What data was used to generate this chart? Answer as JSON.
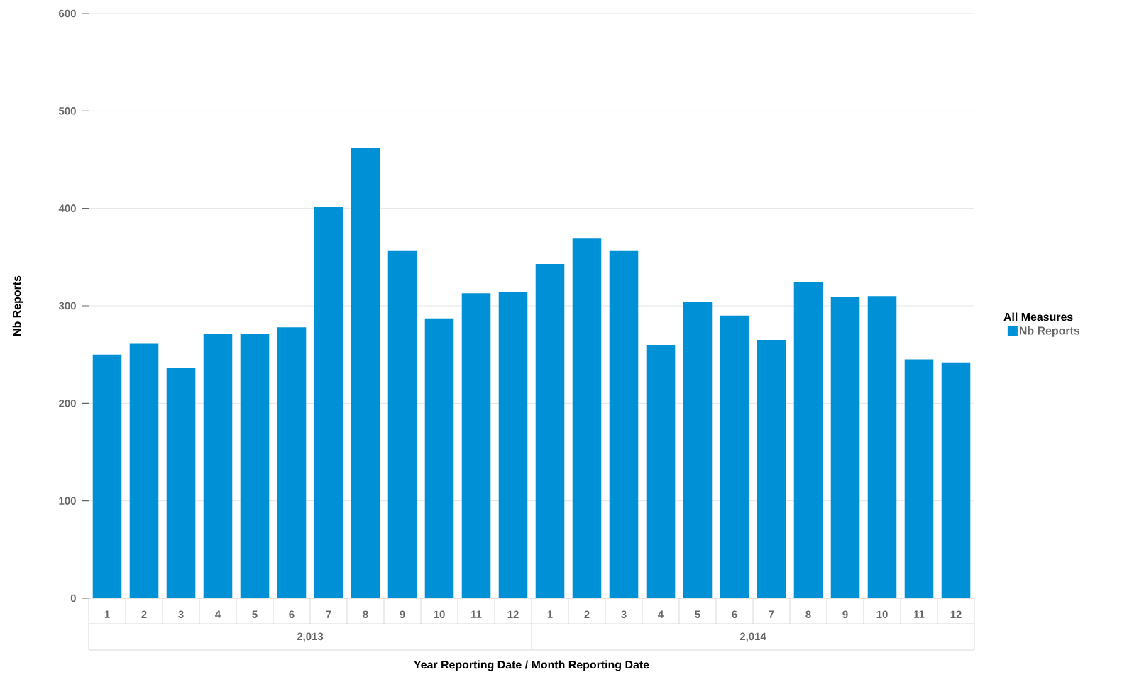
{
  "chart_data": {
    "type": "bar",
    "xlabel": "Year Reporting Date / Month Reporting Date",
    "ylabel": "Nb Reports",
    "legend_title": "All Measures",
    "categories": [
      "1",
      "2",
      "3",
      "4",
      "5",
      "6",
      "7",
      "8",
      "9",
      "10",
      "11",
      "12",
      "1",
      "2",
      "3",
      "4",
      "5",
      "6",
      "7",
      "8",
      "9",
      "10",
      "11",
      "12"
    ],
    "annotations": [
      "2,013",
      "2,014"
    ],
    "series": [
      {
        "name": "Nb Reports",
        "color": "#0090d5",
        "values": [
          250,
          261,
          236,
          271,
          271,
          278,
          402,
          462,
          357,
          287,
          313,
          314,
          343,
          369,
          357,
          260,
          304,
          290,
          265,
          324,
          309,
          310,
          245,
          242
        ]
      }
    ],
    "ylim": [
      0,
      600
    ],
    "yticks": [
      0,
      100,
      200,
      300,
      400,
      500,
      600
    ],
    "grid": "y",
    "legend": "right"
  }
}
